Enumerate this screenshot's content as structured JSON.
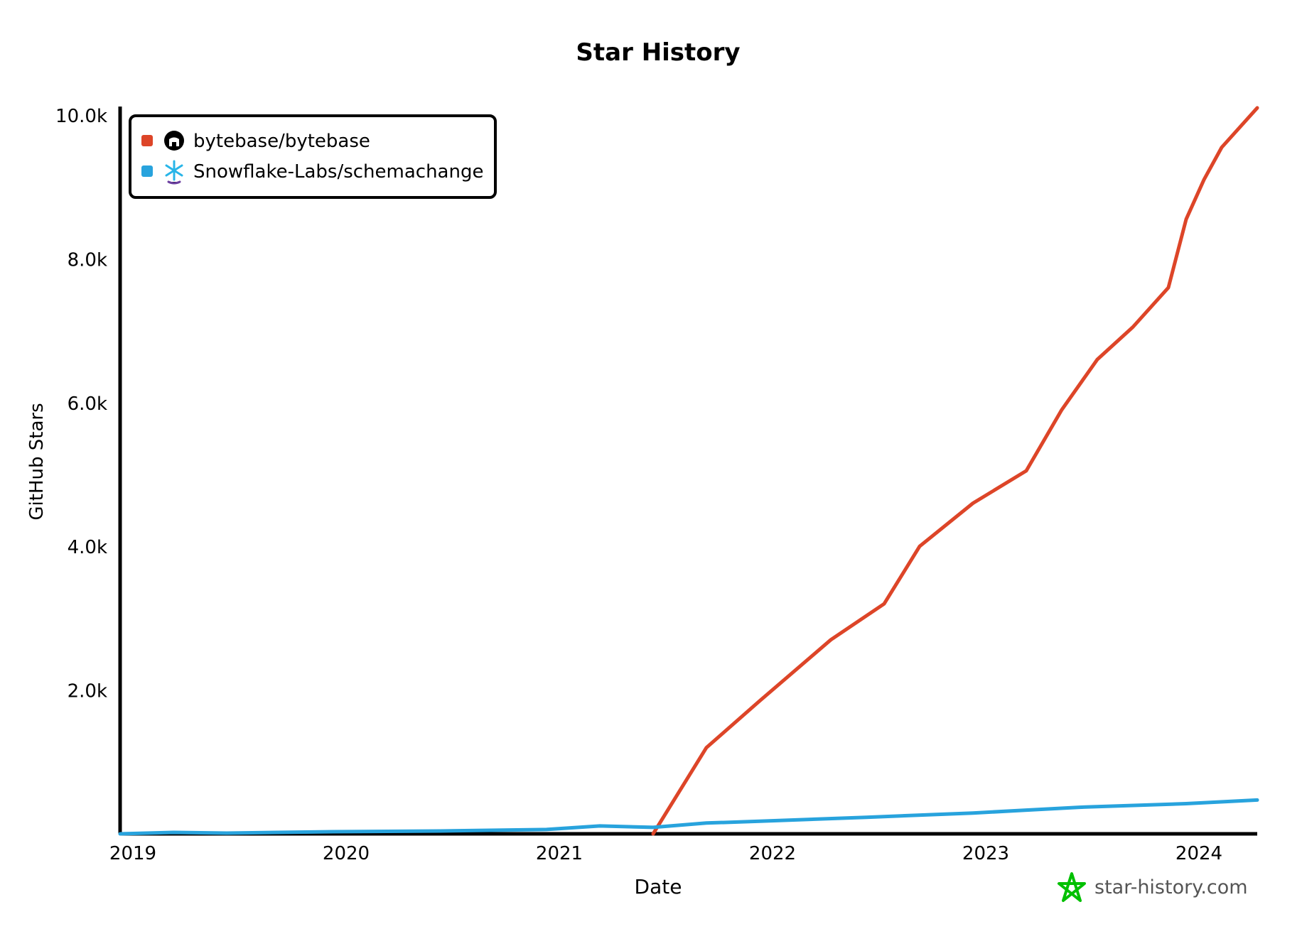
{
  "chart_data": {
    "type": "line",
    "title": "Star History",
    "xlabel": "Date",
    "ylabel": "GitHub Stars",
    "x_ticks": [
      "2019",
      "2020",
      "2021",
      "2022",
      "2023",
      "2024"
    ],
    "y_ticks": [
      {
        "value": 2000,
        "label": "2.0k"
      },
      {
        "value": 4000,
        "label": "4.0k"
      },
      {
        "value": 6000,
        "label": "6.0k"
      },
      {
        "value": 8000,
        "label": "8.0k"
      },
      {
        "value": 10000,
        "label": "10.0k"
      }
    ],
    "xlim": [
      "2019-01",
      "2024-05"
    ],
    "ylim": [
      0,
      10000
    ],
    "grid": false,
    "legend_placement": "top-left",
    "series": [
      {
        "name": "bytebase/bytebase",
        "color": "#dd4528",
        "icon": "github-icon",
        "x": [
          "2021-07",
          "2021-10",
          "2022-01",
          "2022-05",
          "2022-08",
          "2022-10",
          "2023-01",
          "2023-04",
          "2023-06",
          "2023-08",
          "2023-10",
          "2023-12",
          "2024-01",
          "2024-02",
          "2024-03",
          "2024-05"
        ],
        "y": [
          0,
          1200,
          1850,
          2700,
          3200,
          4000,
          4600,
          5050,
          5900,
          6600,
          7050,
          7600,
          8550,
          9100,
          9550,
          10100
        ]
      },
      {
        "name": "Snowflake-Labs/schemachange",
        "color": "#28a3dd",
        "icon": "snowflake-icon",
        "x": [
          "2019-01",
          "2019-04",
          "2019-07",
          "2020-01",
          "2020-07",
          "2021-01",
          "2021-04",
          "2021-07",
          "2021-10",
          "2022-01",
          "2022-07",
          "2023-01",
          "2023-07",
          "2024-01",
          "2024-05"
        ],
        "y": [
          0,
          20,
          10,
          30,
          40,
          60,
          110,
          90,
          150,
          175,
          230,
          290,
          370,
          420,
          470
        ]
      }
    ]
  },
  "watermark": {
    "text": "star-history.com",
    "color": "#00c000"
  }
}
